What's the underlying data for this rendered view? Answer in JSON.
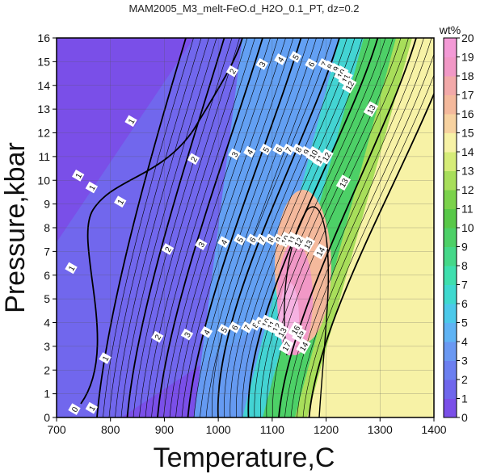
{
  "chart_data": {
    "type": "heatmap",
    "title": "MAM2005_M3_melt-FeO.d_H2O_0.1_PT, dz=0.2",
    "xlabel": "Temperature,C",
    "ylabel": "Pressure,kbar",
    "xlim": [
      700,
      1400
    ],
    "ylim": [
      0,
      16
    ],
    "x_ticks": [
      "700",
      "800",
      "900",
      "1000",
      "1100",
      "1200",
      "1300",
      "1400"
    ],
    "y_ticks": [
      "0",
      "1",
      "2",
      "3",
      "4",
      "5",
      "6",
      "7",
      "8",
      "9",
      "10",
      "11",
      "12",
      "13",
      "14",
      "15",
      "16"
    ],
    "grid": true,
    "colorbar": {
      "unit": "wt%",
      "range": [
        0,
        20
      ],
      "ticks": [
        "0",
        "1",
        "2",
        "3",
        "4",
        "5",
        "6",
        "7",
        "8",
        "9",
        "10",
        "11",
        "12",
        "13",
        "14",
        "15",
        "16",
        "17",
        "18",
        "19",
        "20"
      ],
      "colors": [
        "#7a4fe8",
        "#6f66ec",
        "#6b7ff0",
        "#6a98f2",
        "#5fb3f4",
        "#4cc9ea",
        "#3fd9cf",
        "#3fdfae",
        "#45d889",
        "#4dd067",
        "#58c848",
        "#7bd24b",
        "#a8de5a",
        "#d6ec78",
        "#f7f2a6",
        "#f7d2a0",
        "#f4b99c",
        "#f2a9a9",
        "#f198c6",
        "#f39ad6",
        "#f6b2e2"
      ]
    },
    "contour_labels": [
      {
        "text": "1",
        "x": 740,
        "y": 10.2
      },
      {
        "text": "1",
        "x": 765,
        "y": 9.7
      },
      {
        "text": "1",
        "x": 727,
        "y": 6.3
      },
      {
        "text": "1",
        "x": 790,
        "y": 2.5
      },
      {
        "text": "1",
        "x": 765,
        "y": 0.4
      },
      {
        "text": "0",
        "x": 733,
        "y": 0.35
      },
      {
        "text": "1",
        "x": 838,
        "y": 12.5
      },
      {
        "text": "1",
        "x": 818,
        "y": 9.1
      },
      {
        "text": "2",
        "x": 1026,
        "y": 14.6
      },
      {
        "text": "2",
        "x": 954,
        "y": 10.9
      },
      {
        "text": "2",
        "x": 906,
        "y": 7.1
      },
      {
        "text": "2",
        "x": 887,
        "y": 3.4
      },
      {
        "text": "3",
        "x": 1081,
        "y": 14.9
      },
      {
        "text": "3",
        "x": 1030,
        "y": 11.1
      },
      {
        "text": "3",
        "x": 968,
        "y": 7.3
      },
      {
        "text": "3",
        "x": 942,
        "y": 3.5
      },
      {
        "text": "4",
        "x": 1115,
        "y": 15.1
      },
      {
        "text": "4",
        "x": 1058,
        "y": 11.2
      },
      {
        "text": "4",
        "x": 1010,
        "y": 7.4
      },
      {
        "text": "4",
        "x": 978,
        "y": 3.6
      },
      {
        "text": "5",
        "x": 1143,
        "y": 15.2
      },
      {
        "text": "5",
        "x": 1088,
        "y": 11.3
      },
      {
        "text": "5",
        "x": 1040,
        "y": 7.5
      },
      {
        "text": "5",
        "x": 1010,
        "y": 3.7
      },
      {
        "text": "6",
        "x": 1172,
        "y": 14.9
      },
      {
        "text": "6",
        "x": 1112,
        "y": 11.3
      },
      {
        "text": "6",
        "x": 1063,
        "y": 7.5
      },
      {
        "text": "6",
        "x": 1030,
        "y": 3.8
      },
      {
        "text": "7",
        "x": 1196,
        "y": 14.9
      },
      {
        "text": "7",
        "x": 1130,
        "y": 11.3
      },
      {
        "text": "7",
        "x": 1080,
        "y": 7.5
      },
      {
        "text": "7",
        "x": 1053,
        "y": 3.8
      },
      {
        "text": "8",
        "x": 1207,
        "y": 14.8
      },
      {
        "text": "8",
        "x": 1148,
        "y": 11.3
      },
      {
        "text": "8",
        "x": 1097,
        "y": 7.5
      },
      {
        "text": "8",
        "x": 1068,
        "y": 3.9
      },
      {
        "text": "9",
        "x": 1218,
        "y": 14.7
      },
      {
        "text": "9",
        "x": 1163,
        "y": 11.2
      },
      {
        "text": "9",
        "x": 1112,
        "y": 7.5
      },
      {
        "text": "9",
        "x": 1078,
        "y": 4.0
      },
      {
        "text": "10",
        "x": 1228,
        "y": 14.5
      },
      {
        "text": "10",
        "x": 1176,
        "y": 11.1
      },
      {
        "text": "10",
        "x": 1124,
        "y": 7.5
      },
      {
        "text": "10",
        "x": 1088,
        "y": 4.0
      },
      {
        "text": "11",
        "x": 1236,
        "y": 14.3
      },
      {
        "text": "11",
        "x": 1188,
        "y": 10.9
      },
      {
        "text": "11",
        "x": 1136,
        "y": 7.5
      },
      {
        "text": "11",
        "x": 1098,
        "y": 3.9
      },
      {
        "text": "12",
        "x": 1243,
        "y": 14.0
      },
      {
        "text": "12",
        "x": 1200,
        "y": 11.0
      },
      {
        "text": "12",
        "x": 1148,
        "y": 7.4
      },
      {
        "text": "12",
        "x": 1108,
        "y": 3.8
      },
      {
        "text": "13",
        "x": 1283,
        "y": 13.0
      },
      {
        "text": "13",
        "x": 1232,
        "y": 9.9
      },
      {
        "text": "13",
        "x": 1166,
        "y": 7.3
      },
      {
        "text": "13",
        "x": 1118,
        "y": 3.6
      },
      {
        "text": "14",
        "x": 1189,
        "y": 7.0
      },
      {
        "text": "14",
        "x": 1158,
        "y": 3.0
      },
      {
        "text": "15",
        "x": 1150,
        "y": 3.5
      },
      {
        "text": "16",
        "x": 1143,
        "y": 3.7
      },
      {
        "text": "17",
        "x": 1126,
        "y": 3.0
      }
    ]
  }
}
